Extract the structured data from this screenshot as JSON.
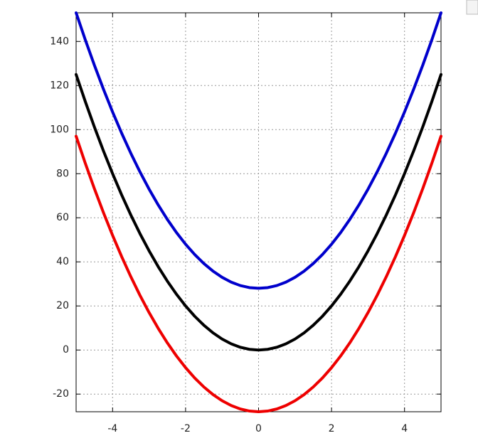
{
  "chart_data": {
    "type": "line",
    "x": [
      -5,
      -4.75,
      -4.5,
      -4.25,
      -4,
      -3.75,
      -3.5,
      -3.25,
      -3,
      -2.75,
      -2.5,
      -2.25,
      -2,
      -1.75,
      -1.5,
      -1.25,
      -1,
      -0.75,
      -0.5,
      -0.25,
      0,
      0.25,
      0.5,
      0.75,
      1,
      1.25,
      1.5,
      1.75,
      2,
      2.25,
      2.5,
      2.75,
      3,
      3.25,
      3.5,
      3.75,
      4,
      4.25,
      4.5,
      4.75,
      5
    ],
    "series": [
      {
        "color": "#0000cc",
        "values": [
          153,
          140.8125,
          129.25,
          118.3125,
          108,
          98.3125,
          89.25,
          80.8125,
          73,
          65.8125,
          59.25,
          53.3125,
          48,
          43.3125,
          39.25,
          35.8125,
          33,
          30.8125,
          29.25,
          28.3125,
          28,
          28.3125,
          29.25,
          30.8125,
          33,
          35.8125,
          39.25,
          43.3125,
          48,
          53.3125,
          59.25,
          65.8125,
          73,
          80.8125,
          89.25,
          98.3125,
          108,
          118.3125,
          129.25,
          140.8125,
          153
        ]
      },
      {
        "color": "#000000",
        "values": [
          125,
          112.8125,
          101.25,
          90.3125,
          80,
          70.3125,
          61.25,
          52.8125,
          45,
          37.8125,
          31.25,
          25.3125,
          20,
          15.3125,
          11.25,
          7.8125,
          5,
          2.8125,
          1.25,
          0.3125,
          0,
          0.3125,
          1.25,
          2.8125,
          5,
          7.8125,
          11.25,
          15.3125,
          20,
          25.3125,
          31.25,
          37.8125,
          45,
          52.8125,
          61.25,
          70.3125,
          80,
          90.3125,
          101.25,
          112.8125,
          125
        ]
      },
      {
        "color": "#ee0000",
        "values": [
          97,
          84.8125,
          73.25,
          62.3125,
          52,
          42.3125,
          33.25,
          24.8125,
          17,
          9.8125,
          3.25,
          -2.6875,
          -8,
          -12.6875,
          -16.75,
          -20.1875,
          -23,
          -25.1875,
          -26.75,
          -27.6875,
          -28,
          -27.6875,
          -26.75,
          -25.1875,
          -23,
          -20.1875,
          -16.75,
          -12.6875,
          -8,
          -2.6875,
          3.25,
          9.8125,
          17,
          24.8125,
          33.25,
          42.3125,
          52,
          62.3125,
          73.25,
          84.8125,
          97
        ]
      }
    ],
    "xlim": [
      -5,
      5
    ],
    "ylim": [
      -28,
      153
    ],
    "xticks": [
      -4,
      -2,
      0,
      2,
      4
    ],
    "yticks": [
      -20,
      0,
      20,
      40,
      60,
      80,
      100,
      120,
      140
    ],
    "grid": true
  }
}
